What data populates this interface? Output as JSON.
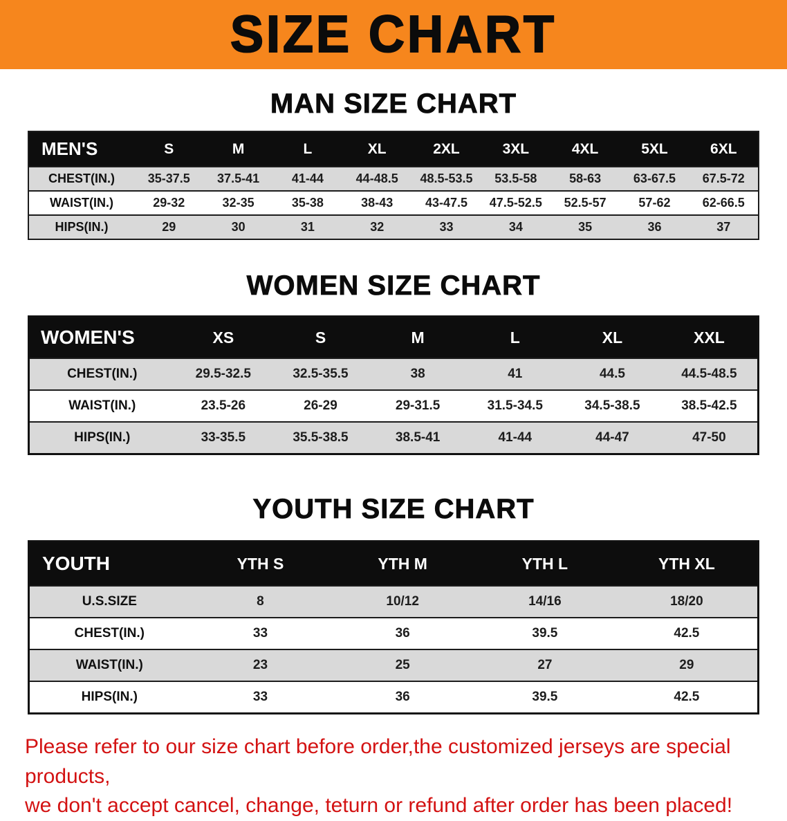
{
  "banner": {
    "title": "SIZE CHART"
  },
  "colors": {
    "banner_bg": "#F6861D",
    "header_bg": "#0D0D0D",
    "row_alt_bg": "#D9D9D9",
    "disclaimer_red": "#D31212"
  },
  "man_section": {
    "heading": "MAN SIZE CHART",
    "table": {
      "header": [
        "MEN'S",
        "S",
        "M",
        "L",
        "XL",
        "2XL",
        "3XL",
        "4XL",
        "5XL",
        "6XL"
      ],
      "rows": [
        [
          "CHEST(IN.)",
          "35-37.5",
          "37.5-41",
          "41-44",
          "44-48.5",
          "48.5-53.5",
          "53.5-58",
          "58-63",
          "63-67.5",
          "67.5-72"
        ],
        [
          "WAIST(IN.)",
          "29-32",
          "32-35",
          "35-38",
          "38-43",
          "43-47.5",
          "47.5-52.5",
          "52.5-57",
          "57-62",
          "62-66.5"
        ],
        [
          "HIPS(IN.)",
          "29",
          "30",
          "31",
          "32",
          "33",
          "34",
          "35",
          "36",
          "37"
        ]
      ]
    }
  },
  "women_section": {
    "heading": "WOMEN SIZE CHART",
    "table": {
      "header": [
        "WOMEN'S",
        "XS",
        "S",
        "M",
        "L",
        "XL",
        "XXL"
      ],
      "rows": [
        [
          "CHEST(IN.)",
          "29.5-32.5",
          "32.5-35.5",
          "38",
          "41",
          "44.5",
          "44.5-48.5"
        ],
        [
          "WAIST(IN.)",
          "23.5-26",
          "26-29",
          "29-31.5",
          "31.5-34.5",
          "34.5-38.5",
          "38.5-42.5"
        ],
        [
          "HIPS(IN.)",
          "33-35.5",
          "35.5-38.5",
          "38.5-41",
          "41-44",
          "44-47",
          "47-50"
        ]
      ]
    }
  },
  "youth_section": {
    "heading": "YOUTH SIZE CHART",
    "table": {
      "header": [
        "YOUTH",
        "YTH S",
        "YTH M",
        "YTH L",
        "YTH XL"
      ],
      "rows": [
        [
          "U.S.SIZE",
          "8",
          "10/12",
          "14/16",
          "18/20"
        ],
        [
          "CHEST(IN.)",
          "33",
          "36",
          "39.5",
          "42.5"
        ],
        [
          "WAIST(IN.)",
          "23",
          "25",
          "27",
          "29"
        ],
        [
          "HIPS(IN.)",
          "33",
          "36",
          "39.5",
          "42.5"
        ]
      ]
    }
  },
  "disclaimer": {
    "line1": "Please refer to our size chart before order,the customized jerseys are special products,",
    "line2": "we don't accept cancel, change, teturn or refund after order has been placed!"
  }
}
